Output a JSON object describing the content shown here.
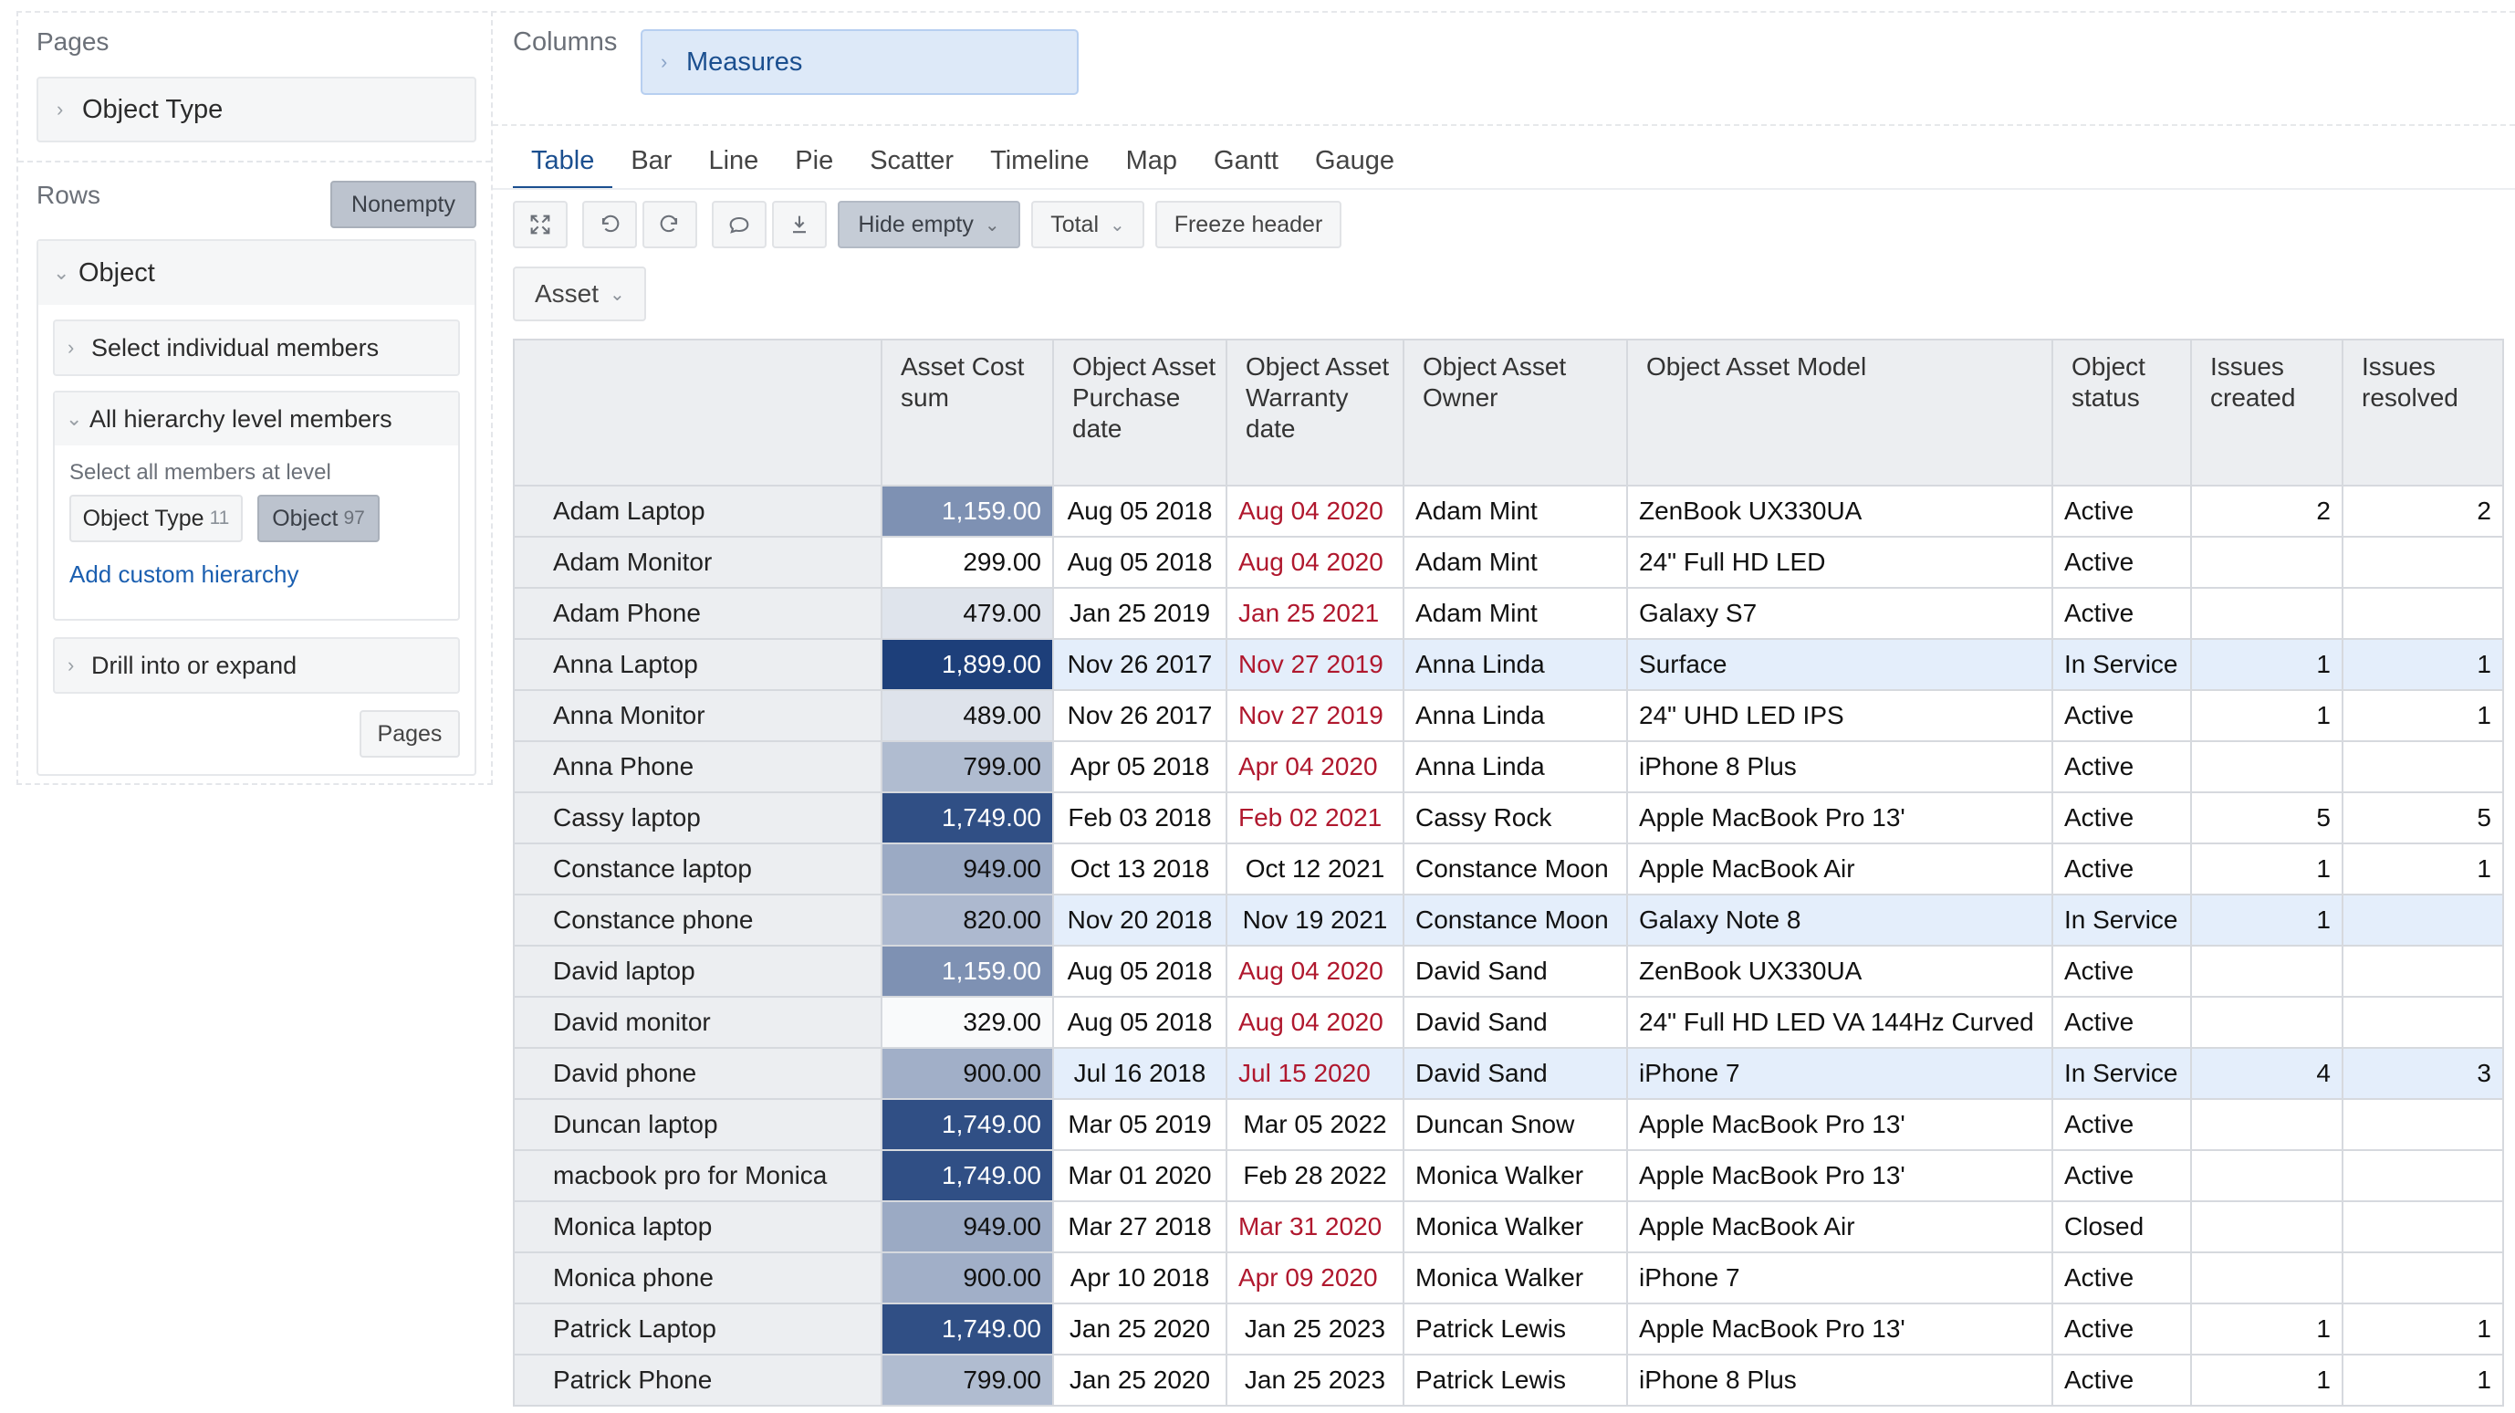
{
  "left_panel": {
    "pages_title": "Pages",
    "object_type_label": "Object Type",
    "rows_title": "Rows",
    "nonempty_label": "Nonempty",
    "object_label": "Object",
    "select_individual_label": "Select individual members",
    "all_hierarchy_label": "All hierarchy level members",
    "select_all_level_text": "Select all members at level",
    "level_chips": [
      {
        "label": "Object Type",
        "count": "11"
      },
      {
        "label": "Object",
        "count": "97"
      }
    ],
    "add_custom_hierarchy": "Add custom hierarchy",
    "drill_label": "Drill into or expand",
    "pages_button": "Pages"
  },
  "columns": {
    "title": "Columns",
    "measures_label": "Measures"
  },
  "tabs": [
    "Table",
    "Bar",
    "Line",
    "Pie",
    "Scatter",
    "Timeline",
    "Map",
    "Gantt",
    "Gauge"
  ],
  "active_tab": "Table",
  "toolbar": {
    "hide_empty_label": "Hide empty",
    "total_label": "Total",
    "freeze_header_label": "Freeze header",
    "icons": [
      "fullscreen-icon",
      "undo-icon",
      "redo-icon",
      "comment-icon",
      "export-icon"
    ]
  },
  "asset_dropdown": "Asset",
  "table": {
    "headers": [
      "",
      "Asset Cost sum",
      "Object Asset Purchase date",
      "Object Asset Warranty date",
      "Object Asset Owner",
      "Object Asset Model",
      "Object status",
      "Issues created",
      "Issues resolved"
    ],
    "rows": [
      {
        "name": "Adam Laptop",
        "cost": "1,159.00",
        "purchase": "Aug 05 2018",
        "warranty": "Aug 04 2020",
        "warranty_expired": true,
        "owner": "Adam Mint",
        "model": "ZenBook UX330UA",
        "status": "Active",
        "created": "2",
        "resolved": "2",
        "highlight": false
      },
      {
        "name": "Adam Monitor",
        "cost": "299.00",
        "purchase": "Aug 05 2018",
        "warranty": "Aug 04 2020",
        "warranty_expired": true,
        "owner": "Adam Mint",
        "model": "24\" Full HD LED",
        "status": "Active",
        "created": "",
        "resolved": "",
        "highlight": false
      },
      {
        "name": "Adam Phone",
        "cost": "479.00",
        "purchase": "Jan 25 2019",
        "warranty": "Jan 25 2021",
        "warranty_expired": true,
        "owner": "Adam Mint",
        "model": "Galaxy S7",
        "status": "Active",
        "created": "",
        "resolved": "",
        "highlight": false
      },
      {
        "name": "Anna Laptop",
        "cost": "1,899.00",
        "purchase": "Nov 26 2017",
        "warranty": "Nov 27 2019",
        "warranty_expired": true,
        "owner": "Anna Linda",
        "model": "Surface",
        "status": "In Service",
        "created": "1",
        "resolved": "1",
        "highlight": true
      },
      {
        "name": "Anna Monitor",
        "cost": "489.00",
        "purchase": "Nov 26 2017",
        "warranty": "Nov 27 2019",
        "warranty_expired": true,
        "owner": "Anna Linda",
        "model": "24\" UHD LED IPS",
        "status": "Active",
        "created": "1",
        "resolved": "1",
        "highlight": false
      },
      {
        "name": "Anna Phone",
        "cost": "799.00",
        "purchase": "Apr 05 2018",
        "warranty": "Apr 04 2020",
        "warranty_expired": true,
        "owner": "Anna Linda",
        "model": "iPhone 8 Plus",
        "status": "Active",
        "created": "",
        "resolved": "",
        "highlight": false
      },
      {
        "name": "Cassy laptop",
        "cost": "1,749.00",
        "purchase": "Feb 03 2018",
        "warranty": "Feb 02 2021",
        "warranty_expired": true,
        "owner": "Cassy Rock",
        "model": "Apple MacBook Pro 13'",
        "status": "Active",
        "created": "5",
        "resolved": "5",
        "highlight": false
      },
      {
        "name": "Constance laptop",
        "cost": "949.00",
        "purchase": "Oct 13 2018",
        "warranty": "Oct 12 2021",
        "warranty_expired": false,
        "owner": "Constance Moon",
        "model": "Apple MacBook Air",
        "status": "Active",
        "created": "1",
        "resolved": "1",
        "highlight": false
      },
      {
        "name": "Constance phone",
        "cost": "820.00",
        "purchase": "Nov 20 2018",
        "warranty": "Nov 19 2021",
        "warranty_expired": false,
        "owner": "Constance Moon",
        "model": "Galaxy Note 8",
        "status": "In Service",
        "created": "1",
        "resolved": "",
        "highlight": true
      },
      {
        "name": "David laptop",
        "cost": "1,159.00",
        "purchase": "Aug 05 2018",
        "warranty": "Aug 04 2020",
        "warranty_expired": true,
        "owner": "David Sand",
        "model": "ZenBook UX330UA",
        "status": "Active",
        "created": "",
        "resolved": "",
        "highlight": false
      },
      {
        "name": "David monitor",
        "cost": "329.00",
        "purchase": "Aug 05 2018",
        "warranty": "Aug 04 2020",
        "warranty_expired": true,
        "owner": "David Sand",
        "model": "24\" Full HD LED VA 144Hz Curved",
        "status": "Active",
        "created": "",
        "resolved": "",
        "highlight": false
      },
      {
        "name": "David phone",
        "cost": "900.00",
        "purchase": "Jul 16 2018",
        "warranty": "Jul 15 2020",
        "warranty_expired": true,
        "owner": "David Sand",
        "model": "iPhone 7",
        "status": "In Service",
        "created": "4",
        "resolved": "3",
        "highlight": true
      },
      {
        "name": "Duncan laptop",
        "cost": "1,749.00",
        "purchase": "Mar 05 2019",
        "warranty": "Mar 05 2022",
        "warranty_expired": false,
        "owner": "Duncan Snow",
        "model": "Apple MacBook Pro 13'",
        "status": "Active",
        "created": "",
        "resolved": "",
        "highlight": false
      },
      {
        "name": "macbook pro for Monica",
        "cost": "1,749.00",
        "purchase": "Mar 01 2020",
        "warranty": "Feb 28 2022",
        "warranty_expired": false,
        "owner": "Monica Walker",
        "model": "Apple MacBook Pro 13'",
        "status": "Active",
        "created": "",
        "resolved": "",
        "highlight": false
      },
      {
        "name": "Monica laptop",
        "cost": "949.00",
        "purchase": "Mar 27 2018",
        "warranty": "Mar 31 2020",
        "warranty_expired": true,
        "owner": "Monica Walker",
        "model": "Apple MacBook Air",
        "status": "Closed",
        "created": "",
        "resolved": "",
        "highlight": false
      },
      {
        "name": "Monica phone",
        "cost": "900.00",
        "purchase": "Apr 10 2018",
        "warranty": "Apr 09 2020",
        "warranty_expired": true,
        "owner": "Monica Walker",
        "model": "iPhone 7",
        "status": "Active",
        "created": "",
        "resolved": "",
        "highlight": false
      },
      {
        "name": "Patrick Laptop",
        "cost": "1,749.00",
        "purchase": "Jan 25 2020",
        "warranty": "Jan 25 2023",
        "warranty_expired": false,
        "owner": "Patrick Lewis",
        "model": "Apple MacBook Pro 13'",
        "status": "Active",
        "created": "1",
        "resolved": "1",
        "highlight": false
      },
      {
        "name": "Patrick Phone",
        "cost": "799.00",
        "purchase": "Jan 25 2020",
        "warranty": "Jan 25 2023",
        "warranty_expired": false,
        "owner": "Patrick Lewis",
        "model": "iPhone 8 Plus",
        "status": "Active",
        "created": "1",
        "resolved": "1",
        "highlight": false
      }
    ]
  },
  "colors": {
    "accent": "#1b4f8f",
    "expired_date": "#b0182e",
    "heat_low": "#ffffff",
    "heat_high": "#1d3f7a",
    "highlight_row": "#e4eefb"
  }
}
